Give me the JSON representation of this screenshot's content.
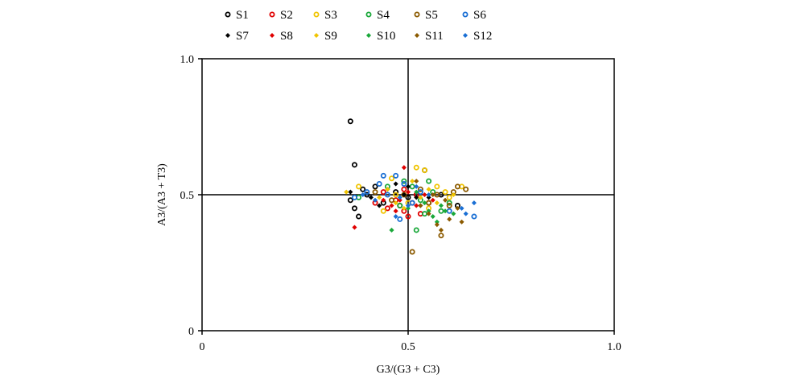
{
  "chart_data": {
    "type": "scatter",
    "title": "",
    "xlabel": "G3/(G3 + C3)",
    "ylabel": "A3/(A3 + T3)",
    "xlim": [
      0,
      1.0
    ],
    "ylim": [
      0,
      1.0
    ],
    "x_ticks": [
      "0",
      "0.5",
      "1.0"
    ],
    "y_ticks": [
      "0",
      "0.5",
      "1.0"
    ],
    "ref_lines": {
      "x": 0.5,
      "y": 0.5
    },
    "legend_position": "top",
    "series": [
      {
        "name": "S1",
        "color": "#000000",
        "marker": "ring",
        "points": [
          [
            0.36,
            0.77
          ],
          [
            0.37,
            0.61
          ],
          [
            0.36,
            0.48
          ],
          [
            0.37,
            0.45
          ],
          [
            0.38,
            0.42
          ],
          [
            0.39,
            0.52
          ],
          [
            0.4,
            0.5
          ],
          [
            0.42,
            0.53
          ],
          [
            0.44,
            0.47
          ],
          [
            0.47,
            0.51
          ],
          [
            0.5,
            0.49
          ],
          [
            0.54,
            0.59
          ],
          [
            0.58,
            0.5
          ],
          [
            0.62,
            0.46
          ]
        ]
      },
      {
        "name": "S2",
        "color": "#e00000",
        "marker": "ring",
        "points": [
          [
            0.42,
            0.47
          ],
          [
            0.45,
            0.45
          ],
          [
            0.47,
            0.48
          ],
          [
            0.49,
            0.44
          ],
          [
            0.51,
            0.47
          ],
          [
            0.52,
            0.5
          ],
          [
            0.53,
            0.43
          ],
          [
            0.49,
            0.52
          ],
          [
            0.44,
            0.51
          ],
          [
            0.55,
            0.47
          ],
          [
            0.5,
            0.42
          ],
          [
            0.48,
            0.46
          ]
        ]
      },
      {
        "name": "S3",
        "color": "#f0c400",
        "marker": "ring",
        "points": [
          [
            0.38,
            0.53
          ],
          [
            0.44,
            0.44
          ],
          [
            0.47,
            0.5
          ],
          [
            0.52,
            0.6
          ],
          [
            0.54,
            0.59
          ],
          [
            0.57,
            0.53
          ],
          [
            0.59,
            0.51
          ],
          [
            0.63,
            0.53
          ],
          [
            0.5,
            0.47
          ],
          [
            0.46,
            0.56
          ],
          [
            0.55,
            0.45
          ],
          [
            0.6,
            0.49
          ]
        ]
      },
      {
        "name": "S4",
        "color": "#1aa83a",
        "marker": "ring",
        "points": [
          [
            0.38,
            0.49
          ],
          [
            0.45,
            0.53
          ],
          [
            0.48,
            0.46
          ],
          [
            0.51,
            0.53
          ],
          [
            0.53,
            0.48
          ],
          [
            0.55,
            0.55
          ],
          [
            0.56,
            0.51
          ],
          [
            0.52,
            0.37
          ],
          [
            0.58,
            0.44
          ],
          [
            0.6,
            0.47
          ],
          [
            0.49,
            0.55
          ],
          [
            0.54,
            0.43
          ]
        ]
      },
      {
        "name": "S5",
        "color": "#8b5a00",
        "marker": "ring",
        "points": [
          [
            0.51,
            0.29
          ],
          [
            0.58,
            0.35
          ],
          [
            0.61,
            0.51
          ],
          [
            0.62,
            0.53
          ],
          [
            0.64,
            0.52
          ],
          [
            0.46,
            0.48
          ],
          [
            0.53,
            0.52
          ],
          [
            0.55,
            0.47
          ],
          [
            0.57,
            0.5
          ],
          [
            0.49,
            0.5
          ],
          [
            0.6,
            0.46
          ],
          [
            0.42,
            0.51
          ]
        ]
      },
      {
        "name": "S6",
        "color": "#1a6fd4",
        "marker": "ring",
        "points": [
          [
            0.37,
            0.49
          ],
          [
            0.4,
            0.51
          ],
          [
            0.44,
            0.57
          ],
          [
            0.47,
            0.57
          ],
          [
            0.49,
            0.54
          ],
          [
            0.51,
            0.47
          ],
          [
            0.66,
            0.42
          ],
          [
            0.6,
            0.44
          ],
          [
            0.45,
            0.5
          ],
          [
            0.48,
            0.41
          ],
          [
            0.53,
            0.51
          ],
          [
            0.43,
            0.54
          ]
        ]
      },
      {
        "name": "S7",
        "color": "#000000",
        "marker": "diamond",
        "points": [
          [
            0.36,
            0.51
          ],
          [
            0.41,
            0.49
          ],
          [
            0.45,
            0.52
          ],
          [
            0.47,
            0.54
          ],
          [
            0.49,
            0.5
          ],
          [
            0.53,
            0.46
          ],
          [
            0.55,
            0.49
          ],
          [
            0.43,
            0.46
          ],
          [
            0.5,
            0.53
          ],
          [
            0.52,
            0.49
          ]
        ]
      },
      {
        "name": "S8",
        "color": "#e00000",
        "marker": "diamond",
        "points": [
          [
            0.37,
            0.38
          ],
          [
            0.46,
            0.46
          ],
          [
            0.48,
            0.48
          ],
          [
            0.49,
            0.6
          ],
          [
            0.5,
            0.51
          ],
          [
            0.52,
            0.46
          ],
          [
            0.54,
            0.5
          ],
          [
            0.56,
            0.48
          ],
          [
            0.44,
            0.48
          ],
          [
            0.47,
            0.44
          ]
        ]
      },
      {
        "name": "S9",
        "color": "#f0c400",
        "marker": "diamond",
        "points": [
          [
            0.35,
            0.51
          ],
          [
            0.43,
            0.49
          ],
          [
            0.47,
            0.47
          ],
          [
            0.51,
            0.55
          ],
          [
            0.55,
            0.52
          ],
          [
            0.57,
            0.47
          ],
          [
            0.61,
            0.5
          ],
          [
            0.49,
            0.45
          ],
          [
            0.53,
            0.49
          ],
          [
            0.45,
            0.52
          ]
        ]
      },
      {
        "name": "S10",
        "color": "#1aa83a",
        "marker": "diamond",
        "points": [
          [
            0.46,
            0.37
          ],
          [
            0.5,
            0.45
          ],
          [
            0.54,
            0.47
          ],
          [
            0.56,
            0.42
          ],
          [
            0.57,
            0.4
          ],
          [
            0.59,
            0.44
          ],
          [
            0.61,
            0.43
          ],
          [
            0.58,
            0.46
          ],
          [
            0.55,
            0.44
          ],
          [
            0.52,
            0.51
          ]
        ]
      },
      {
        "name": "S11",
        "color": "#8b5a00",
        "marker": "diamond",
        "points": [
          [
            0.52,
            0.55
          ],
          [
            0.55,
            0.43
          ],
          [
            0.57,
            0.39
          ],
          [
            0.58,
            0.37
          ],
          [
            0.6,
            0.41
          ],
          [
            0.63,
            0.4
          ],
          [
            0.62,
            0.45
          ],
          [
            0.56,
            0.5
          ],
          [
            0.53,
            0.46
          ],
          [
            0.59,
            0.48
          ]
        ]
      },
      {
        "name": "S12",
        "color": "#1a6fd4",
        "marker": "diamond",
        "points": [
          [
            0.39,
            0.5
          ],
          [
            0.42,
            0.48
          ],
          [
            0.47,
            0.42
          ],
          [
            0.5,
            0.46
          ],
          [
            0.52,
            0.53
          ],
          [
            0.63,
            0.45
          ],
          [
            0.66,
            0.47
          ],
          [
            0.64,
            0.43
          ],
          [
            0.55,
            0.5
          ],
          [
            0.48,
            0.49
          ]
        ]
      }
    ]
  }
}
